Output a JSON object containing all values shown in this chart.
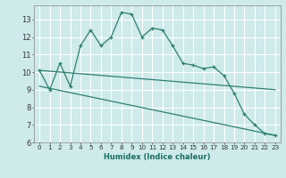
{
  "xlabel": "Humidex (Indice chaleur)",
  "xlim": [
    -0.5,
    23.5
  ],
  "ylim": [
    6,
    13.8
  ],
  "yticks": [
    6,
    7,
    8,
    9,
    10,
    11,
    12,
    13
  ],
  "xticks": [
    0,
    1,
    2,
    3,
    4,
    5,
    6,
    7,
    8,
    9,
    10,
    11,
    12,
    13,
    14,
    15,
    16,
    17,
    18,
    19,
    20,
    21,
    22,
    23
  ],
  "bg_color": "#ceeaea",
  "line_color": "#2d7f72",
  "grid_color": "#b0d8d8",
  "series1_x": [
    0,
    1,
    2,
    3,
    4,
    5,
    6,
    7,
    8,
    9,
    10,
    11,
    12,
    13,
    14,
    15,
    16,
    17,
    18,
    19,
    20,
    21,
    22,
    23
  ],
  "series1_y": [
    10.1,
    9.0,
    10.5,
    9.2,
    11.5,
    12.4,
    11.5,
    12.0,
    13.4,
    13.3,
    12.0,
    12.5,
    12.4,
    11.5,
    10.5,
    10.4,
    10.2,
    10.3,
    9.8,
    8.8,
    7.6,
    7.0,
    6.5,
    6.4
  ],
  "series2_x": [
    0,
    23
  ],
  "series2_y": [
    10.1,
    9.0
  ],
  "series3_x": [
    0,
    23
  ],
  "series3_y": [
    9.2,
    6.4
  ],
  "xlabel_color": "#1a6e63",
  "xlabel_fontsize": 6.0,
  "tick_fontsize": 5.2,
  "ytick_fontsize": 6.0
}
